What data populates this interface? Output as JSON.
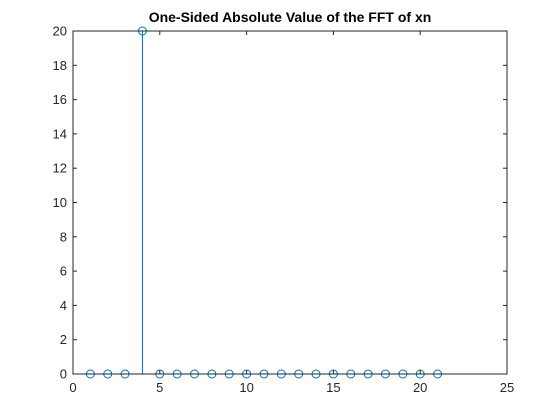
{
  "chart_data": {
    "type": "stem",
    "title": "One-Sided Absolute Value of the FFT of xn",
    "xlabel": "",
    "ylabel": "",
    "xlim": [
      0,
      25
    ],
    "ylim": [
      0,
      20
    ],
    "x_ticks": [
      0,
      5,
      10,
      15,
      20,
      25
    ],
    "y_ticks": [
      0,
      2,
      4,
      6,
      8,
      10,
      12,
      14,
      16,
      18,
      20
    ],
    "grid": false,
    "marker": "open-circle",
    "series": [
      {
        "color": "#0072BD",
        "x": [
          1,
          2,
          3,
          4,
          5,
          6,
          7,
          8,
          9,
          10,
          11,
          12,
          13,
          14,
          15,
          16,
          17,
          18,
          19,
          20,
          21
        ],
        "y": [
          0,
          0,
          0,
          20,
          0,
          0,
          0,
          0,
          0,
          0,
          0,
          0,
          0,
          0,
          0,
          0,
          0,
          0,
          0,
          0,
          0
        ]
      }
    ]
  }
}
